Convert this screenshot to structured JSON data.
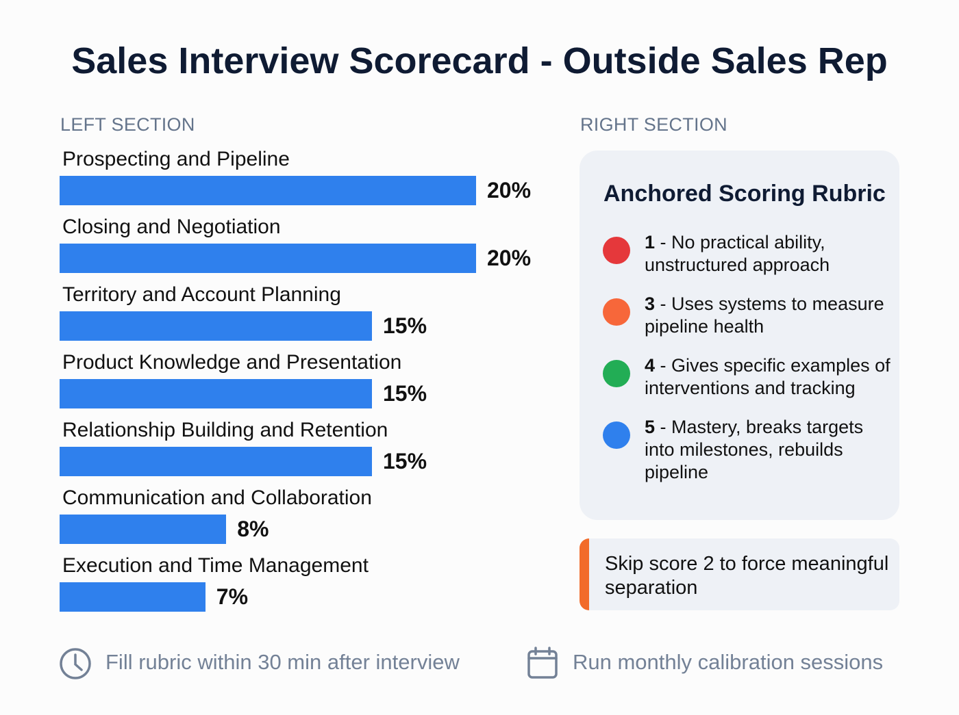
{
  "title": "Sales Interview Scorecard - Outside Sales Rep",
  "left_section_label": "LEFT SECTION",
  "right_section_label": "RIGHT SECTION",
  "chart_data": {
    "type": "bar",
    "orientation": "horizontal",
    "categories": [
      "Prospecting and Pipeline",
      "Closing and Negotiation",
      "Territory and Account Planning",
      "Product Knowledge and Presentation",
      "Relationship Building and Retention",
      "Communication and Collaboration",
      "Execution and Time Management"
    ],
    "values": [
      20,
      20,
      15,
      15,
      15,
      8,
      7
    ],
    "value_labels": [
      "20%",
      "20%",
      "15%",
      "15%",
      "15%",
      "8%",
      "7%"
    ],
    "unit": "%",
    "bar_color": "#2f80ed",
    "grid": false
  },
  "rubric": {
    "title": "Anchored Scoring Rubric",
    "items": [
      {
        "score": "1",
        "text": " - No practical ability, unstructured approach",
        "color": "#e5383b"
      },
      {
        "score": "3",
        "text": " - Uses systems to measure pipeline health",
        "color": "#f7673a"
      },
      {
        "score": "4",
        "text": " - Gives specific examples of interventions and tracking",
        "color": "#22ad55"
      },
      {
        "score": "5",
        "text": " - Mastery, breaks targets into milestones, rebuilds pipeline",
        "color": "#2f80ed"
      }
    ]
  },
  "note": {
    "text": "Skip score 2 to force meaningful separation",
    "accent": "#f26b2a"
  },
  "footer": [
    {
      "icon": "clock-icon",
      "text": "Fill rubric within 30 min after interview"
    },
    {
      "icon": "calendar-icon",
      "text": "Run monthly calibration sessions"
    }
  ]
}
